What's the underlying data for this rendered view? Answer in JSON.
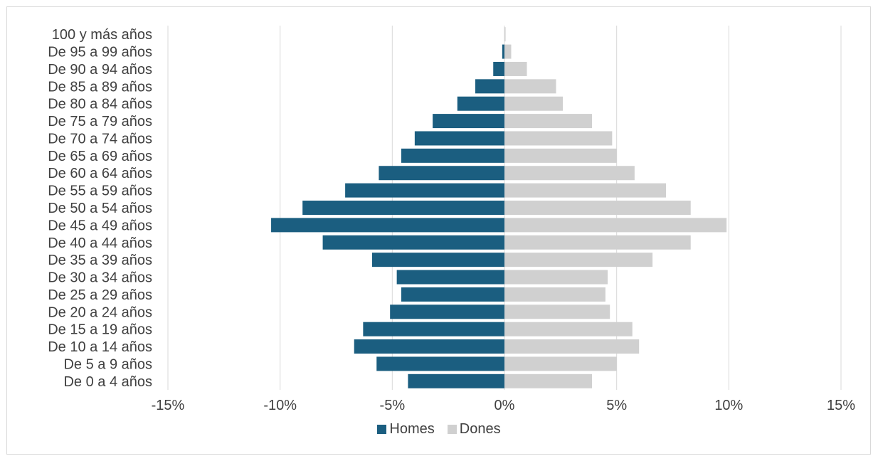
{
  "chart_data": {
    "type": "bar",
    "orientation": "horizontal",
    "categories": [
      "De 0 a 4 años",
      "De 5 a 9 años",
      "De 10 a 14 años",
      "De 15 a 19 años",
      "De 20 a 24 años",
      "De 25 a 29 años",
      "De 30 a 34 años",
      "De 35 a 39 años",
      "De 40 a 44 años",
      "De 45 a 49 años",
      "De 50 a 54 años",
      "De 55 a 59 años",
      "De 60 a 64 años",
      "De 65 a 69 años",
      "De 70 a 74 años",
      "De 75 a 79 años",
      "De 80 a 84 años",
      "De 85 a 89 años",
      "De 90 a 94 años",
      "De 95 a 99 años",
      "100 y más años"
    ],
    "series": [
      {
        "name": "Homes",
        "color": "#1b5e80",
        "values": [
          -4.3,
          -5.7,
          -6.7,
          -6.3,
          -5.1,
          -4.6,
          -4.8,
          -5.9,
          -8.1,
          -10.4,
          -9.0,
          -7.1,
          -5.6,
          -4.6,
          -4.0,
          -3.2,
          -2.1,
          -1.3,
          -0.5,
          -0.1,
          0.0
        ]
      },
      {
        "name": "Dones",
        "color": "#d0d0d0",
        "values": [
          3.9,
          5.0,
          6.0,
          5.7,
          4.7,
          4.5,
          4.6,
          6.6,
          8.3,
          9.9,
          8.3,
          7.2,
          5.8,
          5.0,
          4.8,
          3.9,
          2.6,
          2.3,
          1.0,
          0.3,
          0.05
        ]
      }
    ],
    "x_ticks": [
      "-15%",
      "-10%",
      "-5%",
      "0%",
      "5%",
      "10%",
      "15%"
    ],
    "xlim": [
      -15,
      15
    ],
    "grid": true,
    "legend_position": "bottom"
  }
}
